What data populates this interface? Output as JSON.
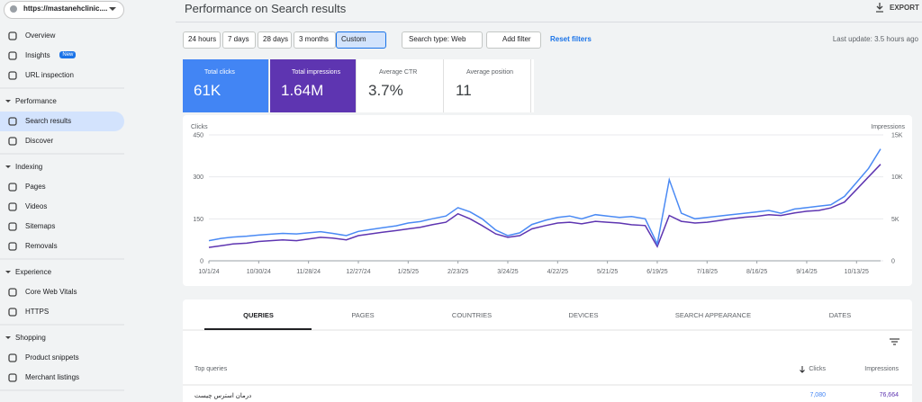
{
  "sidebar": {
    "property": "https://mastanehclinic....",
    "nav": [
      {
        "label": "Overview"
      },
      {
        "label": "Insights",
        "badge": "New"
      },
      {
        "label": "URL inspection"
      }
    ],
    "sections": [
      {
        "title": "Performance",
        "items": [
          "Search results",
          "Discover"
        ]
      },
      {
        "title": "Indexing",
        "items": [
          "Pages",
          "Videos",
          "Sitemaps",
          "Removals"
        ]
      },
      {
        "title": "Experience",
        "items": [
          "Core Web Vitals",
          "HTTPS"
        ]
      },
      {
        "title": "Shopping",
        "items": [
          "Product snippets",
          "Merchant listings"
        ]
      }
    ]
  },
  "header": {
    "title": "Performance on Search results",
    "export": "EXPORT"
  },
  "filters": {
    "dates": [
      "24 hours",
      "7 days",
      "28 days",
      "3 months",
      "Custom"
    ],
    "search_type": "Search type: Web",
    "add_filter": "Add filter",
    "reset": "Reset filters",
    "last_update": "Last update: 3.5 hours ago"
  },
  "metrics": [
    {
      "label": "Total clicks",
      "value": "61K"
    },
    {
      "label": "Total impressions",
      "value": "1.64M"
    },
    {
      "label": "Average CTR",
      "value": "3.7%"
    },
    {
      "label": "Average position",
      "value": "11"
    }
  ],
  "chart_data": {
    "type": "line",
    "y_label": "Clicks",
    "y2_label": "Impressions",
    "x": [
      "10/1/24",
      "10/8/24",
      "10/15/24",
      "10/23/24",
      "10/30/24",
      "11/6/24",
      "11/13/24",
      "11/21/24",
      "11/28/24",
      "12/5/24",
      "12/12/24",
      "12/20/24",
      "12/27/24",
      "1/3/25",
      "1/10/25",
      "1/18/25",
      "1/25/25",
      "2/1/25",
      "2/8/25",
      "2/16/25",
      "2/23/25",
      "3/2/25",
      "3/9/25",
      "3/17/25",
      "3/24/25",
      "3/31/25",
      "4/7/25",
      "4/15/25",
      "4/22/25",
      "4/29/25",
      "5/6/25",
      "5/14/25",
      "5/21/25",
      "5/28/25",
      "6/4/25",
      "6/12/25",
      "6/19/25",
      "6/26/25",
      "7/3/25",
      "7/11/25",
      "7/18/25",
      "7/25/25",
      "8/1/25",
      "8/9/25",
      "8/16/25",
      "8/23/25",
      "8/30/25",
      "9/7/25",
      "9/14/25",
      "9/21/25",
      "9/28/25",
      "10/6/25",
      "10/13/25",
      "10/20/25",
      "10/27/25"
    ],
    "xticks": [
      "10/1/24",
      "10/30/24",
      "11/28/24",
      "12/27/24",
      "1/25/25",
      "2/23/25",
      "3/24/25",
      "4/22/25",
      "5/21/25",
      "6/19/25",
      "7/18/25",
      "8/16/25",
      "9/14/25",
      "10/13/25"
    ],
    "series": [
      {
        "name": "Total clicks",
        "color": "#4a8af4",
        "values": [
          72,
          80,
          85,
          88,
          92,
          95,
          98,
          96,
          100,
          104,
          98,
          90,
          105,
          112,
          118,
          125,
          135,
          140,
          150,
          160,
          190,
          175,
          150,
          110,
          90,
          100,
          130,
          145,
          155,
          160,
          150,
          165,
          160,
          155,
          158,
          150,
          60,
          290,
          170,
          150,
          155,
          160,
          165,
          170,
          175,
          180,
          170,
          185,
          190,
          195,
          200,
          230,
          280,
          330,
          400
        ]
      },
      {
        "name": "Total impressions",
        "color": "#5e35b1",
        "axis": "y2",
        "values": [
          1600,
          1800,
          2000,
          2100,
          2300,
          2400,
          2500,
          2400,
          2600,
          2800,
          2700,
          2500,
          3000,
          3200,
          3400,
          3600,
          3800,
          4000,
          4300,
          4600,
          5600,
          5000,
          4200,
          3200,
          2800,
          3000,
          3800,
          4200,
          4500,
          4600,
          4400,
          4700,
          4600,
          4500,
          4300,
          4200,
          1700,
          5400,
          4700,
          4500,
          4600,
          4800,
          5000,
          5200,
          5300,
          5500,
          5400,
          5700,
          5900,
          6000,
          6300,
          7000,
          8500,
          10000,
          11500
        ]
      }
    ],
    "ylim": [
      0,
      450
    ],
    "yticks": [
      0,
      150,
      300,
      450
    ],
    "y2lim": [
      0,
      15000
    ],
    "y2ticks": [
      0,
      {
        "value": 5000,
        "label": "5K"
      },
      {
        "value": 10000,
        "label": "10K"
      },
      {
        "value": 15000,
        "label": "15K"
      }
    ],
    "grid": true
  },
  "tabs": [
    "QUERIES",
    "PAGES",
    "COUNTRIES",
    "DEVICES",
    "SEARCH APPEARANCE",
    "DATES"
  ],
  "table": {
    "headers": [
      "Top queries",
      "Clicks",
      "Impressions"
    ],
    "rows": [
      [
        "درمان استرس چیست",
        "7,080",
        "76,664"
      ]
    ]
  }
}
